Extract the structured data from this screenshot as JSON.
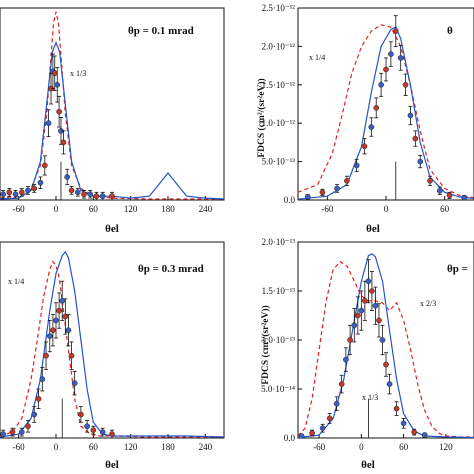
{
  "colors": {
    "theory_solid": "#2456c8",
    "theory_dashed": "#e02020",
    "points_blue": "#3a5fc0",
    "points_red": "#c0392b",
    "axis": "#111111"
  },
  "chart_data": [
    {
      "type": "line",
      "title": "θp = 0.1 mrad",
      "xlabel": "θel",
      "ylabel": "",
      "xlim": [
        -90,
        270
      ],
      "ylim": [
        0,
        1.0
      ],
      "xticks": [
        "-60",
        "0",
        "60",
        "120",
        "180",
        "240"
      ],
      "yticks": [],
      "annotations": [
        {
          "text": "x 1/3"
        }
      ],
      "series": [
        {
          "style": "dashed",
          "x": [
            -90,
            -60,
            -40,
            -25,
            -15,
            -8,
            -4,
            0,
            4,
            8,
            15,
            25,
            40,
            60,
            90,
            150,
            210,
            270
          ],
          "y": [
            0.01,
            0.02,
            0.06,
            0.18,
            0.45,
            0.75,
            0.92,
            0.98,
            0.92,
            0.75,
            0.45,
            0.18,
            0.06,
            0.02,
            0.01,
            0.005,
            0.005,
            0.005
          ]
        },
        {
          "style": "solid",
          "x": [
            -90,
            -60,
            -40,
            -25,
            -15,
            -6,
            0,
            6,
            15,
            25,
            40,
            60,
            90,
            120,
            150,
            165,
            180,
            195,
            210,
            240,
            270
          ],
          "y": [
            0.005,
            0.01,
            0.05,
            0.2,
            0.5,
            0.77,
            0.82,
            0.77,
            0.5,
            0.2,
            0.05,
            0.02,
            0.02,
            0.01,
            0.02,
            0.08,
            0.14,
            0.08,
            0.02,
            0.01,
            0.005
          ]
        },
        {
          "style": "points",
          "x": [
            -85,
            -75,
            -65,
            -55,
            -45,
            -35,
            -25,
            -18,
            -12,
            -8,
            -5,
            -2,
            2,
            5,
            8,
            12,
            18,
            25,
            35,
            45,
            55,
            65,
            75,
            90
          ],
          "y": [
            0.03,
            0.04,
            0.03,
            0.04,
            0.05,
            0.06,
            0.09,
            0.18,
            0.4,
            0.58,
            0.67,
            0.66,
            0.6,
            0.46,
            0.36,
            0.3,
            0.12,
            0.05,
            0.04,
            0.03,
            0.03,
            0.02,
            0.02,
            0.02
          ],
          "err": [
            0.02,
            0.02,
            0.02,
            0.02,
            0.02,
            0.02,
            0.03,
            0.05,
            0.07,
            0.08,
            0.09,
            0.09,
            0.09,
            0.08,
            0.07,
            0.06,
            0.04,
            0.02,
            0.02,
            0.02,
            0.02,
            0.02,
            0.02,
            0.02
          ]
        }
      ]
    },
    {
      "type": "line",
      "title": "θ",
      "xlabel": "θel",
      "ylabel": "FDCS (cm²/(sr²eV))",
      "xlim": [
        -90,
        90
      ],
      "ylim": [
        0,
        2.5e-12
      ],
      "xticks": [
        "-60",
        "0",
        "60"
      ],
      "yticks": [
        "0.0",
        "5.0·10⁻¹³",
        "1.0·10⁻¹²",
        "1.5·10⁻¹²",
        "2.0·10⁻¹²",
        "2.5·10⁻¹²"
      ],
      "annotations": [
        {
          "text": "x 1/4"
        }
      ],
      "series": [
        {
          "style": "dashed",
          "x": [
            -90,
            -70,
            -55,
            -45,
            -35,
            -25,
            -15,
            -5,
            5,
            15,
            25,
            35,
            45,
            60,
            75,
            90
          ],
          "y": [
            1e-13,
            2e-13,
            6e-13,
            1.1e-12,
            1.65e-12,
            2e-12,
            2.2e-12,
            2.28e-12,
            2.25e-12,
            2e-12,
            1.5e-12,
            9e-13,
            4e-13,
            1.5e-13,
            6e-14,
            3e-14
          ]
        },
        {
          "style": "solid",
          "x": [
            -90,
            -60,
            -40,
            -25,
            -15,
            -5,
            5,
            10,
            15,
            25,
            35,
            45,
            60,
            75,
            90
          ],
          "y": [
            1e-14,
            5e-14,
            2e-13,
            7e-13,
            1.4e-12,
            2e-12,
            2.22e-12,
            2.25e-12,
            2.1e-12,
            1.5e-12,
            7.5e-13,
            3e-13,
            1e-13,
            4e-14,
            2e-14
          ]
        },
        {
          "style": "points",
          "x": [
            -80,
            -65,
            -50,
            -40,
            -30,
            -22,
            -15,
            -10,
            -5,
            0,
            5,
            10,
            15,
            20,
            25,
            30,
            35,
            45,
            55,
            65,
            80
          ],
          "y": [
            4e-14,
            1e-13,
            1.5e-13,
            2.5e-13,
            4.5e-13,
            7e-13,
            9.5e-13,
            1.2e-12,
            1.5e-12,
            1.7e-12,
            1.9e-12,
            2.2e-12,
            1.85e-12,
            1.5e-12,
            1.1e-12,
            8e-13,
            5e-13,
            2.5e-13,
            1.2e-13,
            6e-14,
            3e-14
          ],
          "err": [
            3e-14,
            4e-14,
            5e-14,
            6e-14,
            8e-14,
            1e-13,
            1.2e-13,
            1.3e-13,
            1.5e-13,
            1.5e-13,
            1.6e-13,
            2e-13,
            1.6e-13,
            1.4e-13,
            1.2e-13,
            1e-13,
            8e-14,
            6e-14,
            5e-14,
            4e-14,
            3e-14
          ]
        }
      ]
    },
    {
      "type": "line",
      "title": "θp = 0.3 mrad",
      "xlabel": "θel",
      "ylabel": "",
      "xlim": [
        -90,
        270
      ],
      "ylim": [
        0,
        1.0
      ],
      "xticks": [
        "-60",
        "0",
        "60",
        "120",
        "180",
        "240"
      ],
      "yticks": [],
      "annotations": [
        {
          "text": "x 1/4"
        }
      ],
      "series": [
        {
          "style": "dashed",
          "x": [
            -90,
            -70,
            -55,
            -40,
            -30,
            -20,
            -10,
            -5,
            0,
            5,
            10,
            20,
            30,
            40,
            55,
            70,
            90,
            150,
            270
          ],
          "y": [
            0.01,
            0.03,
            0.1,
            0.3,
            0.5,
            0.72,
            0.86,
            0.9,
            0.88,
            0.82,
            0.7,
            0.45,
            0.2,
            0.06,
            0.02,
            0.01,
            0.01,
            0.005,
            0.005
          ]
        },
        {
          "style": "solid",
          "x": [
            -90,
            -60,
            -40,
            -25,
            -10,
            0,
            10,
            15,
            20,
            30,
            40,
            50,
            60,
            75,
            90,
            150,
            210,
            270
          ],
          "y": [
            0.005,
            0.02,
            0.1,
            0.3,
            0.65,
            0.84,
            0.93,
            0.95,
            0.92,
            0.75,
            0.5,
            0.25,
            0.08,
            0.02,
            0.01,
            0.01,
            0.01,
            0.005
          ]
        },
        {
          "style": "points",
          "x": [
            -85,
            -70,
            -55,
            -45,
            -35,
            -28,
            -22,
            -16,
            -10,
            -5,
            0,
            5,
            10,
            15,
            20,
            25,
            30,
            40,
            50,
            60,
            75,
            90
          ],
          "y": [
            0.02,
            0.03,
            0.03,
            0.06,
            0.12,
            0.2,
            0.3,
            0.42,
            0.52,
            0.55,
            0.6,
            0.65,
            0.7,
            0.62,
            0.55,
            0.42,
            0.28,
            0.12,
            0.06,
            0.04,
            0.03,
            0.02
          ],
          "err": [
            0.02,
            0.02,
            0.02,
            0.03,
            0.04,
            0.05,
            0.06,
            0.07,
            0.08,
            0.08,
            0.09,
            0.09,
            0.1,
            0.09,
            0.08,
            0.07,
            0.06,
            0.04,
            0.03,
            0.02,
            0.02,
            0.02
          ]
        }
      ]
    },
    {
      "type": "line",
      "title": "θp =",
      "xlabel": "θel",
      "ylabel": "FDCS (cm²/(sr²eV))",
      "xlim": [
        -90,
        160
      ],
      "ylim": [
        0,
        2e-13
      ],
      "xticks": [
        "-60",
        "0",
        "60",
        "120"
      ],
      "yticks": [
        "0.0",
        "5.0·10⁻¹⁴",
        "1.0·10⁻¹³",
        "1.5·10⁻¹³",
        "2.0·10⁻¹³"
      ],
      "annotations": [
        {
          "text": "x 2/3"
        },
        {
          "text": "x 1/3"
        }
      ],
      "series": [
        {
          "style": "dashed",
          "x": [
            -90,
            -80,
            -70,
            -60,
            -50,
            -40,
            -30,
            -20,
            -10,
            0,
            10,
            20,
            30,
            40,
            50,
            60,
            70,
            80,
            90,
            100,
            110,
            120,
            140,
            160
          ],
          "y": [
            2e-15,
            1e-14,
            4e-14,
            9e-14,
            1.4e-13,
            1.72e-13,
            1.8e-13,
            1.75e-13,
            1.6e-13,
            1.45e-13,
            1.4e-13,
            1.4e-13,
            1.38e-13,
            1.3e-13,
            1.38e-13,
            1.2e-13,
            9e-14,
            5.5e-14,
            2.8e-14,
            1.2e-14,
            5e-15,
            2e-15,
            1e-15,
            1e-15
          ]
        },
        {
          "style": "solid",
          "x": [
            -90,
            -60,
            -40,
            -25,
            -10,
            0,
            10,
            15,
            20,
            30,
            40,
            50,
            60,
            75,
            90,
            120,
            160
          ],
          "y": [
            5e-16,
            3e-15,
            2e-14,
            6e-14,
            1.2e-13,
            1.6e-13,
            1.86e-13,
            1.88e-13,
            1.85e-13,
            1.6e-13,
            1.1e-13,
            6e-14,
            2.5e-14,
            7e-15,
            2e-15,
            1e-15,
            5e-16
          ]
        },
        {
          "style": "points",
          "x": [
            -85,
            -70,
            -55,
            -45,
            -35,
            -28,
            -22,
            -16,
            -10,
            -5,
            0,
            5,
            10,
            15,
            20,
            25,
            30,
            35,
            40,
            50,
            60,
            75,
            90
          ],
          "y": [
            2e-15,
            5e-15,
            1e-14,
            2e-14,
            3.5e-14,
            5.5e-14,
            8e-14,
            1e-13,
            1.15e-13,
            1.25e-13,
            1.3e-13,
            1.4e-13,
            1.6e-13,
            1.5e-13,
            1.35e-13,
            1.2e-13,
            1e-13,
            7.5e-14,
            5.5e-14,
            3e-14,
            1.5e-14,
            6e-15,
            3e-15
          ],
          "err": [
            2e-15,
            3e-15,
            4e-15,
            5e-15,
            7e-15,
            9e-15,
            1.2e-14,
            1.5e-14,
            1.7e-14,
            1.9e-14,
            2e-14,
            2e-14,
            2.2e-14,
            2e-14,
            1.9e-14,
            1.7e-14,
            1.5e-14,
            1.2e-14,
            1e-14,
            7e-15,
            5e-15,
            3e-15,
            2e-15
          ]
        }
      ]
    }
  ]
}
